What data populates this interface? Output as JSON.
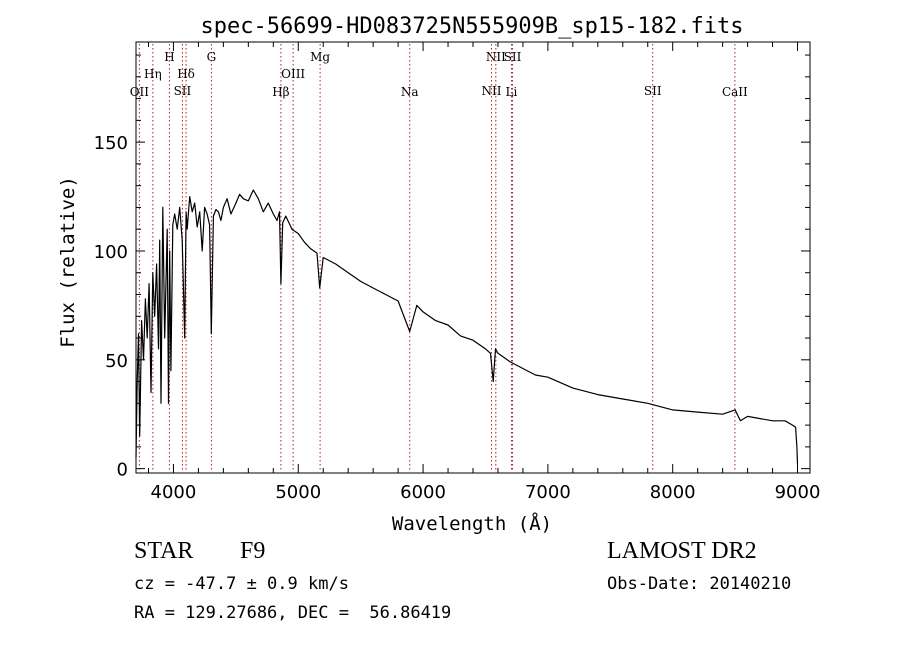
{
  "footer": {
    "object_class": "STAR",
    "subclass": "F9",
    "survey": "LAMOST DR2",
    "redshift": "cz = -47.7 ± 0.9 km/s",
    "obs_date": "Obs-Date: 20140210",
    "coords": "RA = 129.27686, DEC =  56.86419"
  },
  "chart_data": {
    "type": "line",
    "title": "spec-56699-HD083725N555909B_sp15-182.fits",
    "xlabel": "Wavelength (Å)",
    "ylabel": "Flux (relative)",
    "xlim": [
      3700,
      9100
    ],
    "ylim": [
      -2,
      196
    ],
    "xticks": [
      4000,
      5000,
      6000,
      7000,
      8000,
      9000
    ],
    "yticks": [
      0,
      50,
      100,
      150
    ],
    "line_color": "#000000",
    "marker_color": "#b22222",
    "series": [
      {
        "x": [
          3700,
          3710,
          3720,
          3730,
          3745,
          3760,
          3775,
          3790,
          3805,
          3820,
          3835,
          3850,
          3865,
          3880,
          3890,
          3900,
          3915,
          3930,
          3950,
          3960,
          3970,
          3980,
          3995,
          4010,
          4030,
          4050,
          4070,
          4090,
          4101,
          4110,
          4130,
          4150,
          4170,
          4190,
          4210,
          4230,
          4250,
          4270,
          4290,
          4303,
          4320,
          4340,
          4360,
          4380,
          4400,
          4430,
          4460,
          4500,
          4530,
          4560,
          4600,
          4640,
          4680,
          4720,
          4760,
          4800,
          4830,
          4850,
          4861,
          4875,
          4900,
          4950,
          5000,
          5050,
          5100,
          5150,
          5172,
          5200,
          5300,
          5400,
          5500,
          5600,
          5700,
          5800,
          5893,
          5950,
          6000,
          6100,
          6200,
          6300,
          6400,
          6500,
          6540,
          6562,
          6580,
          6600,
          6700,
          6800,
          6900,
          7000,
          7200,
          7400,
          7600,
          7800,
          8000,
          8200,
          8400,
          8500,
          8542,
          8600,
          8700,
          8800,
          8900,
          8960,
          8985,
          8995,
          9000
        ],
        "y": [
          5,
          40,
          62,
          15,
          68,
          50,
          78,
          60,
          85,
          35,
          90,
          70,
          94,
          55,
          105,
          30,
          120,
          60,
          110,
          30,
          100,
          45,
          112,
          117,
          110,
          120,
          105,
          60,
          118,
          110,
          125,
          118,
          122,
          111,
          118,
          100,
          120,
          117,
          112,
          62,
          116,
          119,
          118,
          114,
          120,
          124,
          117,
          122,
          126,
          124,
          123,
          128,
          124,
          118,
          122,
          117,
          114,
          118,
          85,
          113,
          116,
          110,
          108,
          104,
          101,
          99,
          83,
          97,
          94,
          90,
          86,
          83,
          80,
          77,
          63,
          75,
          72,
          68,
          66,
          61,
          59,
          55,
          53,
          40,
          55,
          53,
          49,
          46,
          43,
          42,
          37,
          34,
          32,
          30,
          27,
          26,
          25,
          27,
          22,
          24,
          23,
          22,
          22,
          20,
          19,
          10,
          2
        ]
      }
    ],
    "lines": [
      {
        "label": "OII",
        "x": 3727,
        "row": 3
      },
      {
        "label": "Hη",
        "x": 3835,
        "row": 1
      },
      {
        "label": "H",
        "x": 3968,
        "row": 0
      },
      {
        "label": "Hδ",
        "x": 4101,
        "row": 1
      },
      {
        "label": "SII",
        "x": 4072,
        "row": 2
      },
      {
        "label": "G",
        "x": 4304,
        "row": 0
      },
      {
        "label": "Hβ",
        "x": 4861,
        "row": 3
      },
      {
        "label": "OIII",
        "x": 4959,
        "row": 1
      },
      {
        "label": "Mg",
        "x": 5175,
        "row": 0
      },
      {
        "label": "Na",
        "x": 5893,
        "row": 3
      },
      {
        "label": "NII",
        "x": 6583,
        "row": 0
      },
      {
        "label": "NII",
        "x": 6548,
        "row": 2
      },
      {
        "label": "SII",
        "x": 6717,
        "row": 0
      },
      {
        "label": "Li",
        "x": 6708,
        "row": 3
      },
      {
        "label": "SII",
        "x": 7840,
        "row": 2
      },
      {
        "label": "CaII",
        "x": 8498,
        "row": 3
      }
    ]
  }
}
